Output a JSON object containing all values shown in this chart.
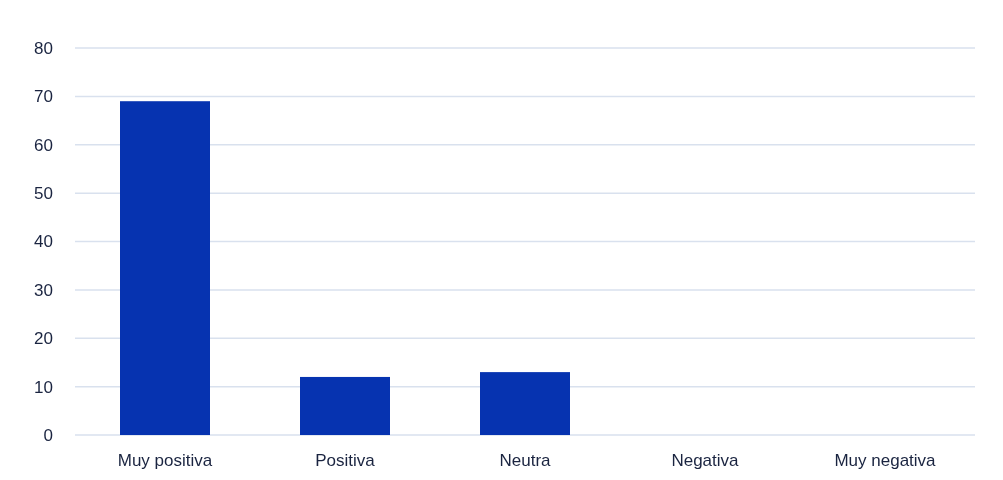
{
  "chart_data": {
    "type": "bar",
    "categories": [
      "Muy positiva",
      "Positiva",
      "Neutra",
      "Negativa",
      "Muy negativa"
    ],
    "values": [
      69,
      12,
      13,
      0,
      0
    ],
    "color": "#0633b0",
    "ylim": [
      0,
      80
    ],
    "yticks": [
      0,
      10,
      20,
      30,
      40,
      50,
      60,
      70,
      80
    ],
    "grid": "y"
  }
}
